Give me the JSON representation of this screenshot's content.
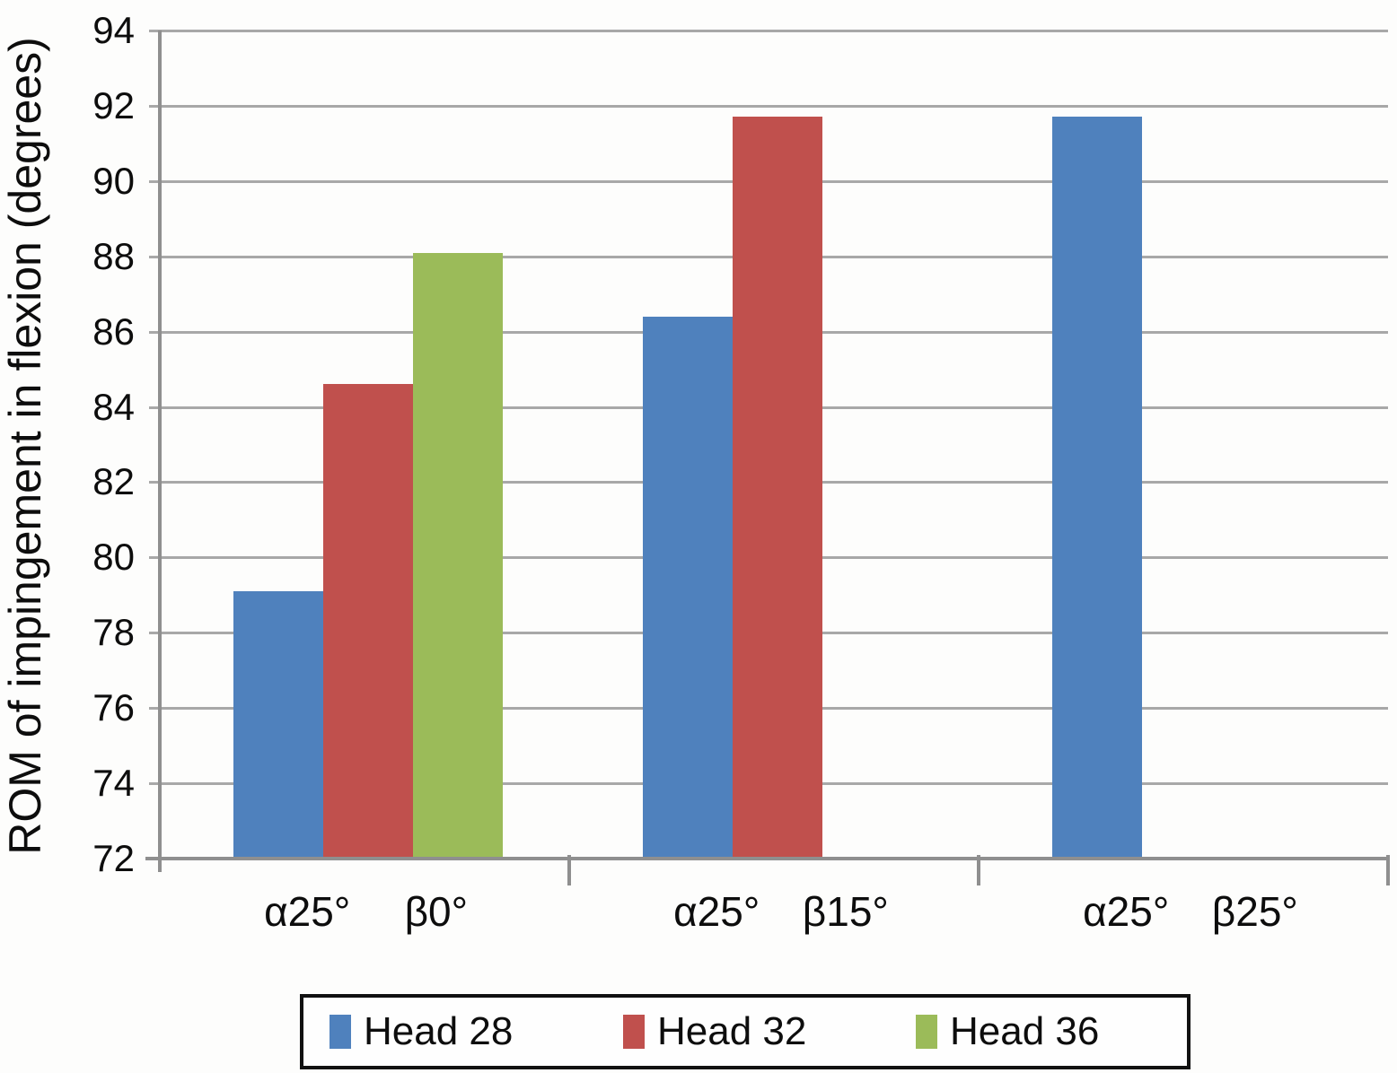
{
  "chart_data": {
    "type": "bar",
    "title": "",
    "ylabel": "ROM of impingement in flexion (degrees)",
    "xlabel": "",
    "ylim": [
      72,
      94
    ],
    "yticks": [
      72,
      74,
      76,
      78,
      80,
      82,
      84,
      86,
      88,
      90,
      92,
      94
    ],
    "grid": true,
    "legend_position": "bottom",
    "categories": [
      {
        "labels": [
          "α25°",
          "β0°"
        ]
      },
      {
        "labels": [
          "α25°",
          "β15°"
        ]
      },
      {
        "labels": [
          "α25°",
          "β25°"
        ]
      }
    ],
    "series": [
      {
        "name": "Head 28",
        "color": "#4f81bd",
        "values": [
          79.1,
          86.4,
          91.7
        ]
      },
      {
        "name": "Head 32",
        "color": "#c0504d",
        "values": [
          84.6,
          91.7,
          null
        ]
      },
      {
        "name": "Head 36",
        "color": "#9bbb59",
        "values": [
          88.1,
          null,
          null
        ]
      }
    ]
  },
  "colors": {
    "grid": "#a8a8a8",
    "axis": "#8f8f8f",
    "text": "#0d0d0d",
    "background": "#fdfdfc",
    "legend_border": "#111111"
  }
}
